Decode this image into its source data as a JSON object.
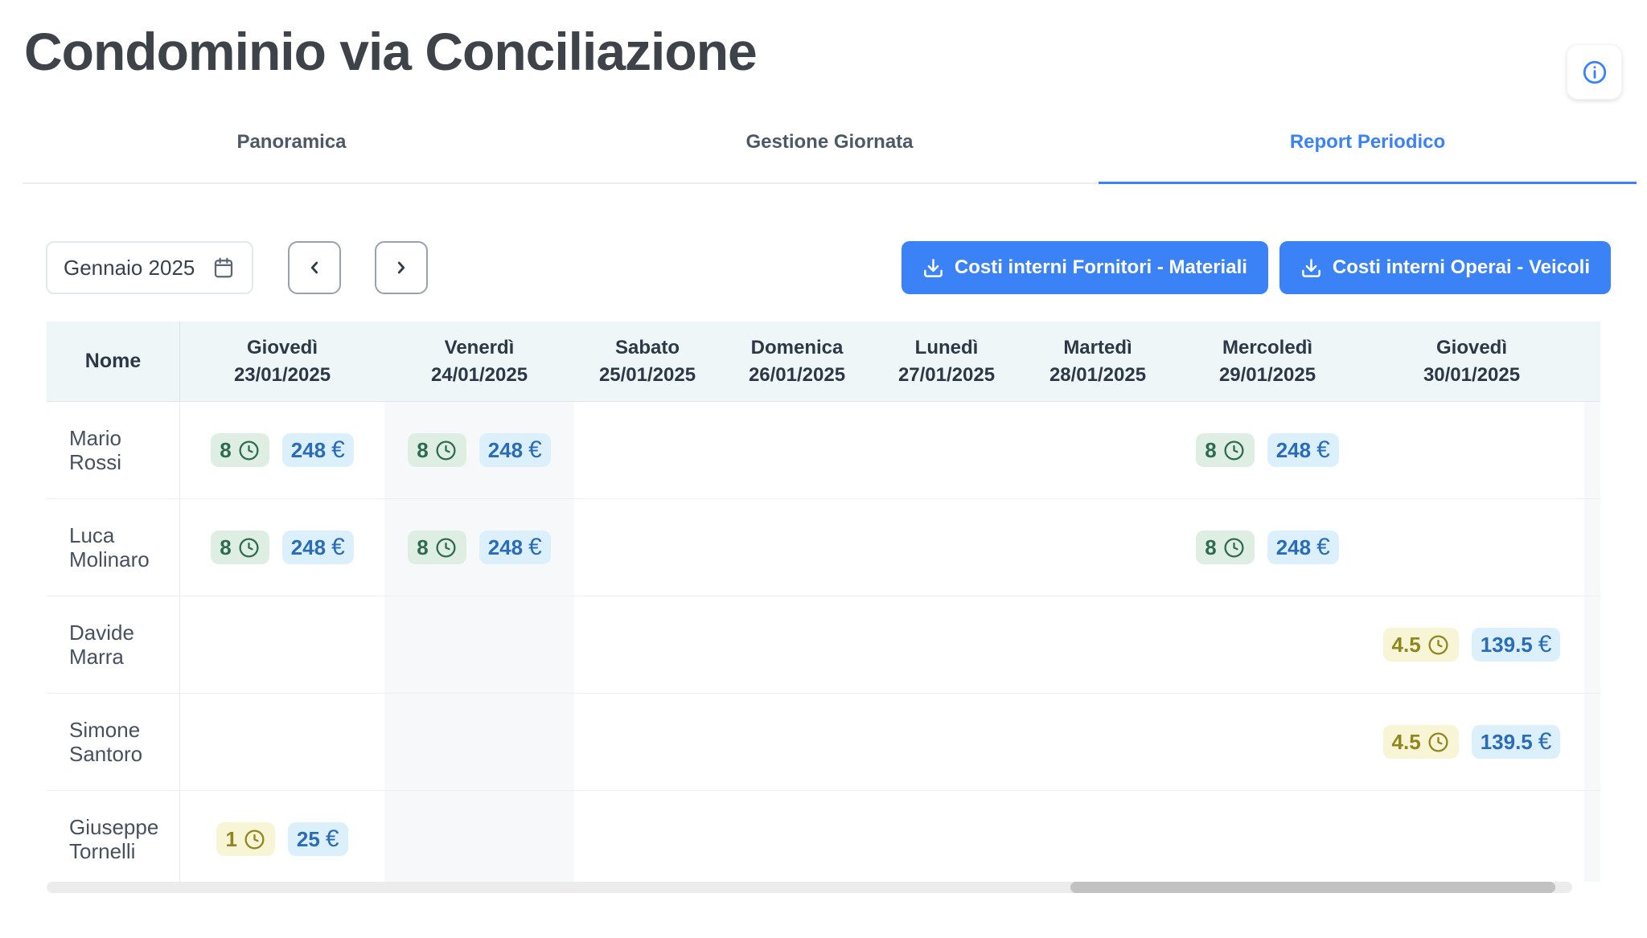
{
  "page": {
    "title": "Condominio via Conciliazione"
  },
  "header": {
    "info_button_icon": "info-circle"
  },
  "tabs": [
    {
      "label": "Panoramica",
      "active": false
    },
    {
      "label": "Gestione Giornata",
      "active": false
    },
    {
      "label": "Report Periodico",
      "active": true
    }
  ],
  "toolbar": {
    "period_label": "Gennaio 2025",
    "calendar_icon": "calendar",
    "prev_icon": "chevron-left",
    "next_icon": "chevron-right",
    "export_buttons": [
      {
        "label": "Costi interni Fornitori - Materiali",
        "icon": "download"
      },
      {
        "label": "Costi interni Operai - Veicoli",
        "icon": "download"
      }
    ]
  },
  "table": {
    "name_header": "Nome",
    "currency": "€",
    "hours_icon": "clock",
    "columns": [
      {
        "day": "Giovedì",
        "date": "23/01/2025",
        "shaded": false
      },
      {
        "day": "Venerdì",
        "date": "24/01/2025",
        "shaded": true
      },
      {
        "day": "Sabato",
        "date": "25/01/2025",
        "shaded": false
      },
      {
        "day": "Domenica",
        "date": "26/01/2025",
        "shaded": false
      },
      {
        "day": "Lunedì",
        "date": "27/01/2025",
        "shaded": false
      },
      {
        "day": "Martedì",
        "date": "28/01/2025",
        "shaded": false
      },
      {
        "day": "Mercoledì",
        "date": "29/01/2025",
        "shaded": false
      },
      {
        "day": "Giovedì",
        "date": "30/01/2025",
        "shaded": false
      }
    ],
    "rows": [
      {
        "name": "Mario Rossi",
        "cells": [
          {
            "hours": "8",
            "hours_variant": "green",
            "cost": "248"
          },
          {
            "hours": "8",
            "hours_variant": "green",
            "cost": "248"
          },
          null,
          null,
          null,
          null,
          {
            "hours": "8",
            "hours_variant": "green",
            "cost": "248"
          },
          null
        ]
      },
      {
        "name": "Luca Molinaro",
        "cells": [
          {
            "hours": "8",
            "hours_variant": "green",
            "cost": "248"
          },
          {
            "hours": "8",
            "hours_variant": "green",
            "cost": "248"
          },
          null,
          null,
          null,
          null,
          {
            "hours": "8",
            "hours_variant": "green",
            "cost": "248"
          },
          null
        ]
      },
      {
        "name": "Davide Marra",
        "cells": [
          null,
          null,
          null,
          null,
          null,
          null,
          null,
          {
            "hours": "4.5",
            "hours_variant": "yellow",
            "cost": "139.5"
          }
        ]
      },
      {
        "name": "Simone Santoro",
        "cells": [
          null,
          null,
          null,
          null,
          null,
          null,
          null,
          {
            "hours": "4.5",
            "hours_variant": "yellow",
            "cost": "139.5"
          }
        ]
      },
      {
        "name": "Giuseppe Tornelli",
        "cells": [
          {
            "hours": "1",
            "hours_variant": "yellow",
            "cost": "25"
          },
          null,
          null,
          null,
          null,
          null,
          null,
          null
        ]
      }
    ]
  },
  "colors": {
    "accent_blue": "#3b82f6",
    "table_header_bg": "#eff6f7",
    "badge_hours_green_bg": "#dfeee2",
    "badge_hours_green_fg": "#2e6b52",
    "badge_hours_yellow_bg": "#f8f4d6",
    "badge_hours_yellow_fg": "#8f861e",
    "badge_cost_bg": "#dcf0fb",
    "badge_cost_fg": "#2b6cb8"
  }
}
